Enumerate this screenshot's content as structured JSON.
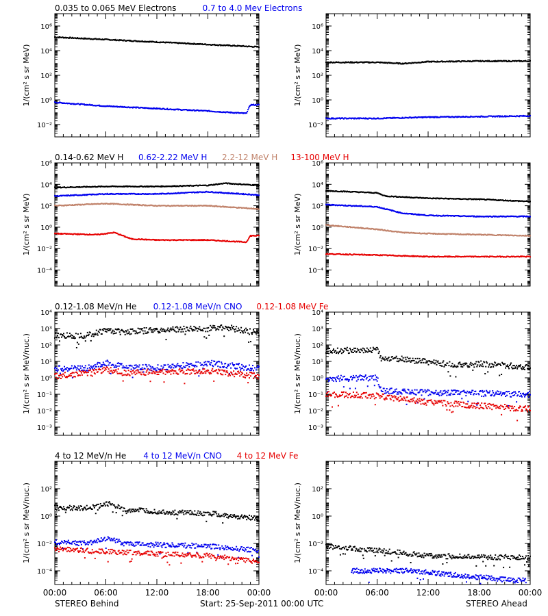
{
  "colors": {
    "black": "#000000",
    "blue": "#0000ee",
    "tan": "#c0826a",
    "red": "#e60000"
  },
  "footer": {
    "left": "STEREO Behind",
    "center": "Start: 25-Sep-2011 00:00 UTC",
    "right": "STEREO Ahead"
  },
  "xtick_labels": [
    "00:00",
    "06:00",
    "12:00",
    "18:00",
    "00:00"
  ],
  "rows": [
    {
      "title_items": [
        {
          "text": "0.035 to 0.065 MeV Electrons",
          "color": "black"
        },
        {
          "text": "0.7 to 4.0 Mev Electrons",
          "color": "blue"
        }
      ],
      "ylabel": "1/(cm² s sr MeV)",
      "ylim_log": [
        -3,
        7
      ],
      "yticks": [
        {
          "exp": -2,
          "label": "10⁻²"
        },
        {
          "exp": 0,
          "label": "10⁰"
        },
        {
          "exp": 2,
          "label": "10²"
        },
        {
          "exp": 4,
          "label": "10⁴"
        },
        {
          "exp": 6,
          "label": "10⁶"
        }
      ]
    },
    {
      "title_items": [
        {
          "text": "0.14-0.62 MeV H",
          "color": "black"
        },
        {
          "text": "0.62-2.22 MeV H",
          "color": "blue"
        },
        {
          "text": "2.2-12 MeV H",
          "color": "tan"
        },
        {
          "text": "13-100 MeV H",
          "color": "red"
        }
      ],
      "ylabel": "1/(cm² s sr MeV)",
      "ylim_log": [
        -5.5,
        6
      ],
      "yticks": [
        {
          "exp": -4,
          "label": "10⁻⁴"
        },
        {
          "exp": -2,
          "label": "10⁻²"
        },
        {
          "exp": 0,
          "label": "10⁰"
        },
        {
          "exp": 2,
          "label": "10²"
        },
        {
          "exp": 4,
          "label": "10⁴"
        },
        {
          "exp": 6,
          "label": "10⁶"
        }
      ]
    },
    {
      "title_items": [
        {
          "text": "0.12-1.08 MeV/n He",
          "color": "black"
        },
        {
          "text": "0.12-1.08 MeV/n CNO",
          "color": "blue"
        },
        {
          "text": "0.12-1.08 MeV Fe",
          "color": "red"
        }
      ],
      "ylabel": "1/(cm² s sr MeV/nuc.)",
      "ylim_log": [
        -3.5,
        4
      ],
      "yticks": [
        {
          "exp": -3,
          "label": "10⁻³"
        },
        {
          "exp": -2,
          "label": "10⁻²"
        },
        {
          "exp": -1,
          "label": "10⁻¹"
        },
        {
          "exp": 0,
          "label": "10⁰"
        },
        {
          "exp": 1,
          "label": "10¹"
        },
        {
          "exp": 2,
          "label": "10²"
        },
        {
          "exp": 3,
          "label": "10³"
        },
        {
          "exp": 4,
          "label": "10⁴"
        }
      ]
    },
    {
      "title_items": [
        {
          "text": "4 to 12 MeV/n He",
          "color": "black"
        },
        {
          "text": "4 to 12 MeV/n CNO",
          "color": "blue"
        },
        {
          "text": "4 to 12 MeV Fe",
          "color": "red"
        }
      ],
      "ylabel": "1/(cm² s sr MeV/nuc.)",
      "ylim_log": [
        -5,
        4
      ],
      "yticks": [
        {
          "exp": -4,
          "label": "10⁻⁴"
        },
        {
          "exp": -2,
          "label": "10⁻²"
        },
        {
          "exp": 0,
          "label": "10⁰"
        },
        {
          "exp": 2,
          "label": "10²"
        }
      ]
    }
  ],
  "chart_data": [
    {
      "type": "line",
      "panel": "electrons-behind",
      "x_unit": "hours",
      "series": [
        {
          "color": "black",
          "x": [
            0,
            6,
            12,
            18,
            24
          ],
          "log_y": [
            5.1,
            4.9,
            4.7,
            4.5,
            4.3
          ]
        },
        {
          "color": "blue",
          "x": [
            0,
            6,
            12,
            18,
            22.5,
            23,
            24
          ],
          "log_y": [
            -0.2,
            -0.5,
            -0.7,
            -0.9,
            -1.1,
            -0.4,
            -0.4
          ]
        }
      ]
    },
    {
      "type": "line",
      "panel": "electrons-ahead",
      "x_unit": "hours",
      "series": [
        {
          "color": "black",
          "x": [
            0,
            6,
            9,
            12,
            18,
            24
          ],
          "log_y": [
            3.05,
            3.05,
            2.95,
            3.1,
            3.15,
            3.15
          ]
        },
        {
          "color": "blue",
          "x": [
            0,
            6,
            12,
            18,
            24
          ],
          "log_y": [
            -1.5,
            -1.5,
            -1.4,
            -1.35,
            -1.3
          ]
        }
      ]
    },
    {
      "type": "line",
      "panel": "protons-behind",
      "x_unit": "hours",
      "series": [
        {
          "color": "black",
          "x": [
            0,
            6,
            12,
            18,
            20,
            24
          ],
          "log_y": [
            3.7,
            3.8,
            3.8,
            3.9,
            4.1,
            3.9
          ]
        },
        {
          "color": "blue",
          "x": [
            0,
            6,
            12,
            18,
            24
          ],
          "log_y": [
            2.9,
            3.1,
            3.1,
            3.3,
            3.0
          ]
        },
        {
          "color": "tan",
          "x": [
            0,
            6,
            12,
            18,
            22,
            24
          ],
          "log_y": [
            2.0,
            2.2,
            2.0,
            2.0,
            1.8,
            1.7
          ]
        },
        {
          "color": "red",
          "x": [
            0,
            5,
            7,
            9,
            12,
            18,
            22.5,
            23,
            24
          ],
          "log_y": [
            -0.6,
            -0.7,
            -0.5,
            -1.1,
            -1.2,
            -1.2,
            -1.4,
            -0.8,
            -0.8
          ]
        }
      ]
    },
    {
      "type": "line",
      "panel": "protons-ahead",
      "x_unit": "hours",
      "series": [
        {
          "color": "black",
          "x": [
            0,
            6,
            7,
            12,
            18,
            24
          ],
          "log_y": [
            3.4,
            3.2,
            2.9,
            2.7,
            2.6,
            2.4
          ]
        },
        {
          "color": "blue",
          "x": [
            0,
            6,
            9,
            12,
            18,
            24
          ],
          "log_y": [
            2.1,
            1.9,
            1.3,
            1.1,
            1.0,
            1.0
          ]
        },
        {
          "color": "tan",
          "x": [
            0,
            6,
            9,
            12,
            18,
            24
          ],
          "log_y": [
            0.2,
            -0.2,
            -0.5,
            -0.6,
            -0.7,
            -0.8
          ]
        },
        {
          "color": "red",
          "x": [
            0,
            6,
            12,
            18,
            24
          ],
          "log_y": [
            -2.5,
            -2.6,
            -2.75,
            -2.75,
            -2.75
          ]
        }
      ]
    },
    {
      "type": "scatter",
      "panel": "low-ions-behind",
      "x_unit": "hours",
      "series": [
        {
          "color": "black",
          "x": [
            0,
            4,
            6,
            8,
            12,
            18,
            20,
            24
          ],
          "log_y": [
            2.55,
            2.6,
            2.9,
            2.8,
            2.9,
            3.0,
            3.1,
            2.7
          ]
        },
        {
          "color": "blue",
          "x": [
            0,
            4,
            6,
            8,
            12,
            18,
            24
          ],
          "log_y": [
            0.55,
            0.6,
            0.9,
            0.7,
            0.6,
            0.9,
            0.55
          ]
        },
        {
          "color": "red",
          "x": [
            0,
            4,
            6,
            8,
            12,
            18,
            24
          ],
          "log_y": [
            0.1,
            0.3,
            0.5,
            0.3,
            0.35,
            0.4,
            0.1
          ]
        }
      ]
    },
    {
      "type": "scatter",
      "panel": "low-ions-ahead",
      "x_unit": "hours",
      "series": [
        {
          "color": "black",
          "x": [
            0,
            6,
            6.6,
            8,
            12,
            16,
            18,
            24
          ],
          "log_y": [
            1.65,
            1.7,
            1.1,
            1.2,
            0.95,
            0.75,
            0.85,
            0.65
          ]
        },
        {
          "color": "blue",
          "x": [
            0,
            6,
            6.6,
            12,
            18,
            24
          ],
          "log_y": [
            -0.05,
            0.0,
            -0.8,
            -0.9,
            -0.95,
            -1.0
          ]
        },
        {
          "color": "red",
          "x": [
            0,
            6,
            12,
            18,
            24
          ],
          "log_y": [
            -1.0,
            -1.1,
            -1.5,
            -1.7,
            -1.9
          ]
        }
      ]
    },
    {
      "type": "scatter",
      "panel": "high-ions-behind",
      "x_unit": "hours",
      "series": [
        {
          "color": "black",
          "x": [
            0,
            4,
            6.5,
            8,
            12,
            18,
            24
          ],
          "log_y": [
            0.6,
            0.6,
            0.9,
            0.5,
            0.3,
            0.2,
            -0.2
          ]
        },
        {
          "color": "blue",
          "x": [
            0,
            4,
            6.5,
            8,
            12,
            18,
            24
          ],
          "log_y": [
            -1.9,
            -2.0,
            -1.6,
            -2.0,
            -2.1,
            -2.2,
            -2.5
          ]
        },
        {
          "color": "red",
          "x": [
            0,
            6,
            12,
            18,
            24
          ],
          "log_y": [
            -2.4,
            -2.6,
            -2.75,
            -2.9,
            -3.3
          ]
        }
      ]
    },
    {
      "type": "scatter",
      "panel": "high-ions-ahead",
      "x_unit": "hours",
      "series": [
        {
          "color": "black",
          "x": [
            0,
            6,
            12,
            18,
            24
          ],
          "log_y": [
            -2.2,
            -2.5,
            -2.9,
            -3.0,
            -3.0
          ]
        },
        {
          "color": "blue",
          "x": [
            3,
            7,
            10,
            22,
            23.5
          ],
          "log_y": [
            -4.0,
            -4.0,
            -4.0,
            -4.7,
            -4.7
          ]
        }
      ]
    }
  ]
}
